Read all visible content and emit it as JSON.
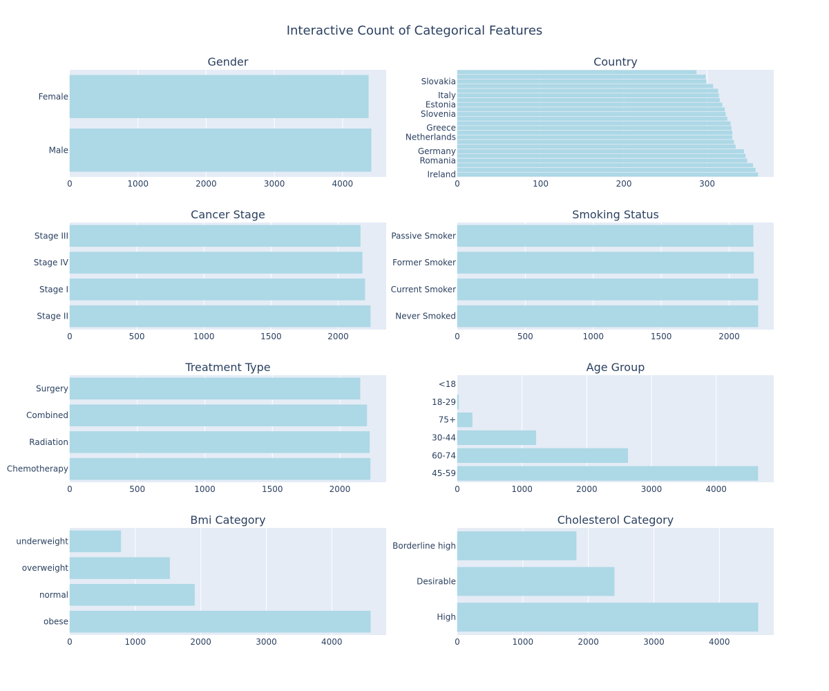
{
  "title": "Interactive Count of Categorical Features",
  "colors": {
    "bar": "#add8e6",
    "plot_bg": "#e5ecf6",
    "grid": "#ffffff",
    "text": "#2a3f5f"
  },
  "chart_data": [
    {
      "type": "bar",
      "orientation": "horizontal",
      "title": "Gender",
      "categories": [
        "Male",
        "Female"
      ],
      "values": [
        4420,
        4380
      ],
      "xlim": [
        0,
        4640
      ],
      "xticks": [
        0,
        1000,
        2000,
        3000,
        4000
      ],
      "grid": true
    },
    {
      "type": "bar",
      "orientation": "horizontal",
      "title": "Country",
      "categories": [
        "Ireland",
        "",
        "",
        "Romania",
        "",
        "Germany",
        "",
        "",
        "Netherlands",
        "",
        "Greece",
        "",
        "",
        "Slovenia",
        "",
        "Estonia",
        "",
        "Italy",
        "",
        "",
        "Slovakia",
        "",
        ""
      ],
      "values": [
        361,
        358,
        355,
        348,
        346,
        344,
        334,
        332,
        330,
        330,
        329,
        328,
        324,
        322,
        321,
        318,
        315,
        314,
        313,
        307,
        299,
        298,
        287
      ],
      "xlim": [
        0,
        380
      ],
      "xticks": [
        0,
        100,
        200,
        300
      ],
      "grid": true
    },
    {
      "type": "bar",
      "orientation": "horizontal",
      "title": "Cancer Stage",
      "categories": [
        "Stage II",
        "Stage I",
        "Stage IV",
        "Stage III"
      ],
      "values": [
        2240,
        2200,
        2180,
        2165
      ],
      "xlim": [
        0,
        2358
      ],
      "xticks": [
        0,
        500,
        1000,
        1500,
        2000
      ],
      "grid": true
    },
    {
      "type": "bar",
      "orientation": "horizontal",
      "title": "Smoking Status",
      "categories": [
        "Never Smoked",
        "Current Smoker",
        "Former Smoker",
        "Passive Smoker"
      ],
      "values": [
        2212,
        2212,
        2180,
        2177
      ],
      "xlim": [
        0,
        2328
      ],
      "xticks": [
        0,
        500,
        1000,
        1500,
        2000
      ],
      "grid": true
    },
    {
      "type": "bar",
      "orientation": "horizontal",
      "title": "Treatment Type",
      "categories": [
        "Chemotherapy",
        "Radiation",
        "Combined",
        "Surgery"
      ],
      "values": [
        2225,
        2220,
        2200,
        2150
      ],
      "xlim": [
        0,
        2343
      ],
      "xticks": [
        0,
        500,
        1000,
        1500,
        2000
      ],
      "grid": true
    },
    {
      "type": "bar",
      "orientation": "horizontal",
      "title": "Age Group",
      "categories": [
        "45-59",
        "60-74",
        "30-44",
        "75+",
        "18-29",
        "<18"
      ],
      "values": [
        4645,
        2635,
        1215,
        230,
        20,
        0
      ],
      "xlim": [
        0,
        4890
      ],
      "xticks": [
        0,
        1000,
        2000,
        3000,
        4000
      ],
      "grid": true
    },
    {
      "type": "bar",
      "orientation": "horizontal",
      "title": "Bmi Category",
      "categories": [
        "obese",
        "normal",
        "overweight",
        "underweight"
      ],
      "values": [
        4590,
        1905,
        1525,
        780
      ],
      "xlim": [
        0,
        4830
      ],
      "xticks": [
        0,
        1000,
        2000,
        3000,
        4000
      ],
      "grid": true
    },
    {
      "type": "bar",
      "orientation": "horizontal",
      "title": "Cholesterol Category",
      "categories": [
        "High",
        "Desirable",
        "Borderline high"
      ],
      "values": [
        4590,
        2395,
        1815
      ],
      "xlim": [
        0,
        4830
      ],
      "xticks": [
        0,
        1000,
        2000,
        3000,
        4000
      ],
      "grid": true
    }
  ]
}
